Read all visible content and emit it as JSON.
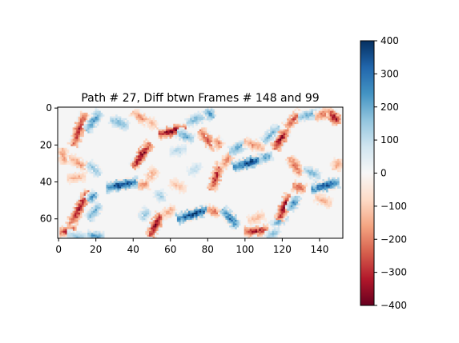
{
  "chart_data": {
    "type": "heatmap",
    "title": "Path # 27, Diff btwn Frames # 148 and 99",
    "xlabel": "",
    "ylabel": "",
    "xlim": [
      -0.5,
      152.5
    ],
    "ylim": [
      70.5,
      -0.5
    ],
    "x_ticks": [
      0,
      20,
      40,
      60,
      80,
      100,
      120,
      140
    ],
    "y_ticks": [
      0,
      20,
      40,
      60
    ],
    "grid": false,
    "colormap": "RdBu",
    "colorbar": {
      "min": -400,
      "max": 400,
      "ticks": [
        400,
        300,
        200,
        100,
        0,
        -100,
        -200,
        -300,
        -400
      ],
      "tick_labels": [
        "400",
        "300",
        "200",
        "100",
        "0",
        "−100",
        "−200",
        "−300",
        "−400"
      ]
    },
    "strokes": [
      {
        "x1": 8,
        "y1": 20,
        "x2": 14,
        "y2": 3,
        "value": -320
      },
      {
        "x1": 15,
        "y1": 12,
        "x2": 22,
        "y2": 2,
        "value": 240
      },
      {
        "x1": 28,
        "y1": 6,
        "x2": 37,
        "y2": 10,
        "value": 200
      },
      {
        "x1": 40,
        "y1": 2,
        "x2": 48,
        "y2": 8,
        "value": -180
      },
      {
        "x1": 48,
        "y1": 6,
        "x2": 52,
        "y2": 10,
        "value": -140
      },
      {
        "x1": 54,
        "y1": 14,
        "x2": 68,
        "y2": 11,
        "value": -380
      },
      {
        "x1": 64,
        "y1": 13,
        "x2": 72,
        "y2": 17,
        "value": 210
      },
      {
        "x1": 69,
        "y1": 8,
        "x2": 78,
        "y2": 4,
        "value": 190
      },
      {
        "x1": 79,
        "y1": 1,
        "x2": 83,
        "y2": 5,
        "value": 240
      },
      {
        "x1": 76,
        "y1": 12,
        "x2": 84,
        "y2": 22,
        "value": -260
      },
      {
        "x1": 84,
        "y1": 17,
        "x2": 87,
        "y2": 21,
        "value": -200
      },
      {
        "x1": 40,
        "y1": 32,
        "x2": 49,
        "y2": 19,
        "value": -370
      },
      {
        "x1": 2,
        "y1": 22,
        "x2": 3,
        "y2": 30,
        "value": -180
      },
      {
        "x1": 6,
        "y1": 27,
        "x2": 16,
        "y2": 33,
        "value": -170
      },
      {
        "x1": 16,
        "y1": 30,
        "x2": 22,
        "y2": 36,
        "value": 170
      },
      {
        "x1": 5,
        "y1": 38,
        "x2": 14,
        "y2": 37,
        "value": -150
      },
      {
        "x1": 26,
        "y1": 43,
        "x2": 42,
        "y2": 40,
        "value": 380
      },
      {
        "x1": 43,
        "y1": 42,
        "x2": 48,
        "y2": 41,
        "value": -200
      },
      {
        "x1": 48,
        "y1": 38,
        "x2": 52,
        "y2": 33,
        "value": -160
      },
      {
        "x1": 53,
        "y1": 45,
        "x2": 56,
        "y2": 50,
        "value": 150
      },
      {
        "x1": 82,
        "y1": 44,
        "x2": 87,
        "y2": 30,
        "value": -300
      },
      {
        "x1": 88,
        "y1": 32,
        "x2": 93,
        "y2": 24,
        "value": -200
      },
      {
        "x1": 92,
        "y1": 24,
        "x2": 100,
        "y2": 19,
        "value": 220
      },
      {
        "x1": 100,
        "y1": 18,
        "x2": 110,
        "y2": 22,
        "value": -180
      },
      {
        "x1": 94,
        "y1": 32,
        "x2": 110,
        "y2": 27,
        "value": 380
      },
      {
        "x1": 108,
        "y1": 28,
        "x2": 114,
        "y2": 25,
        "value": 220
      },
      {
        "x1": 110,
        "y1": 18,
        "x2": 118,
        "y2": 10,
        "value": 200
      },
      {
        "x1": 116,
        "y1": 22,
        "x2": 122,
        "y2": 12,
        "value": -350
      },
      {
        "x1": 122,
        "y1": 10,
        "x2": 130,
        "y2": 2,
        "value": -260
      },
      {
        "x1": 129,
        "y1": 5,
        "x2": 140,
        "y2": 2,
        "value": 200
      },
      {
        "x1": 138,
        "y1": 5,
        "x2": 146,
        "y2": 1,
        "value": -220
      },
      {
        "x1": 146,
        "y1": 2,
        "x2": 150,
        "y2": 8,
        "value": -380
      },
      {
        "x1": 124,
        "y1": 27,
        "x2": 130,
        "y2": 36,
        "value": -240
      },
      {
        "x1": 132,
        "y1": 33,
        "x2": 140,
        "y2": 37,
        "value": 180
      },
      {
        "x1": 148,
        "y1": 33,
        "x2": 151,
        "y2": 28,
        "value": -170
      },
      {
        "x1": 136,
        "y1": 44,
        "x2": 150,
        "y2": 40,
        "value": 360
      },
      {
        "x1": 126,
        "y1": 42,
        "x2": 132,
        "y2": 44,
        "value": -280
      },
      {
        "x1": 6,
        "y1": 64,
        "x2": 16,
        "y2": 45,
        "value": -330
      },
      {
        "x1": 16,
        "y1": 50,
        "x2": 20,
        "y2": 46,
        "value": 240
      },
      {
        "x1": 16,
        "y1": 60,
        "x2": 22,
        "y2": 52,
        "value": 200
      },
      {
        "x1": 1,
        "y1": 67,
        "x2": 9,
        "y2": 66,
        "value": -320
      },
      {
        "x1": 5,
        "y1": 69,
        "x2": 15,
        "y2": 70,
        "value": 160
      },
      {
        "x1": 16,
        "y1": 69,
        "x2": 24,
        "y2": 70,
        "value": 240
      },
      {
        "x1": 49,
        "y1": 69,
        "x2": 55,
        "y2": 57,
        "value": -380
      },
      {
        "x1": 44,
        "y1": 60,
        "x2": 48,
        "y2": 55,
        "value": 160
      },
      {
        "x1": 56,
        "y1": 58,
        "x2": 62,
        "y2": 54,
        "value": -160
      },
      {
        "x1": 64,
        "y1": 60,
        "x2": 80,
        "y2": 55,
        "value": 390
      },
      {
        "x1": 80,
        "y1": 55,
        "x2": 86,
        "y2": 57,
        "value": -220
      },
      {
        "x1": 88,
        "y1": 55,
        "x2": 96,
        "y2": 64,
        "value": 300
      },
      {
        "x1": 100,
        "y1": 67,
        "x2": 112,
        "y2": 66,
        "value": -330
      },
      {
        "x1": 102,
        "y1": 61,
        "x2": 110,
        "y2": 58,
        "value": -140
      },
      {
        "x1": 115,
        "y1": 64,
        "x2": 122,
        "y2": 58,
        "value": 200
      },
      {
        "x1": 118,
        "y1": 60,
        "x2": 124,
        "y2": 47,
        "value": -360
      },
      {
        "x1": 124,
        "y1": 55,
        "x2": 128,
        "y2": 48,
        "value": 250
      },
      {
        "x1": 112,
        "y1": 70,
        "x2": 118,
        "y2": 66,
        "value": 170
      },
      {
        "x1": 138,
        "y1": 48,
        "x2": 146,
        "y2": 52,
        "value": -150
      },
      {
        "x1": 68,
        "y1": 22,
        "x2": 60,
        "y2": 24,
        "value": 120
      },
      {
        "x1": 60,
        "y1": 40,
        "x2": 68,
        "y2": 44,
        "value": -120
      },
      {
        "x1": 70,
        "y1": 35,
        "x2": 76,
        "y2": 31,
        "value": 110
      }
    ]
  }
}
